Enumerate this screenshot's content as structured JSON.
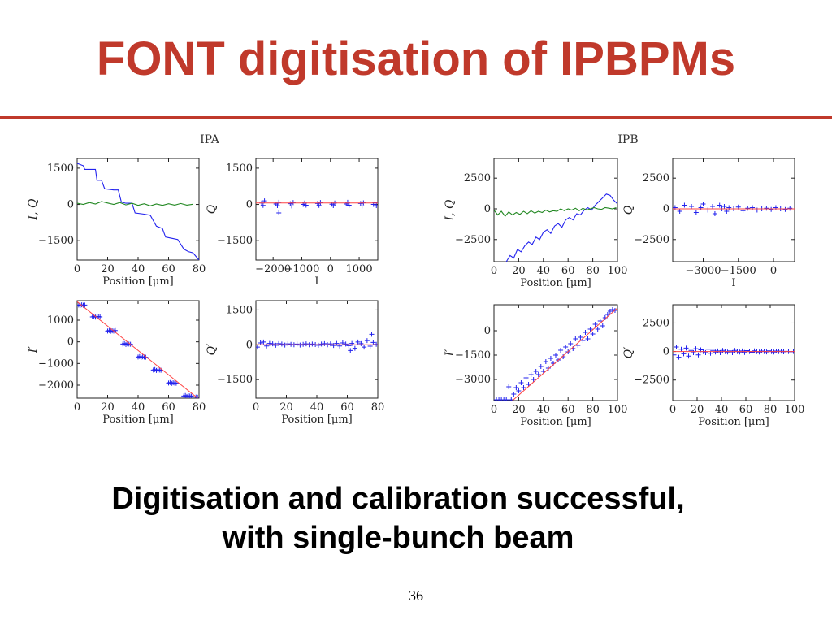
{
  "slide": {
    "title": "FONT digitisation of IPBPMs",
    "caption_line1": "Digitisation and calibration successful,",
    "caption_line2": "with single-bunch beam",
    "page_number": "36"
  },
  "colors": {
    "title": "#c0392b",
    "blue": "#2222ee",
    "green": "#228822",
    "red": "#ff4444"
  },
  "chart_data": [
    {
      "id": "ipa-iq",
      "group": "IPA",
      "type": "line",
      "xlabel": "Position [μm]",
      "ylabel": "I, Q",
      "xlim": [
        0,
        80
      ],
      "ylim": [
        -2300,
        1900
      ],
      "xticks": [
        0,
        20,
        40,
        60,
        80
      ],
      "yticks": [
        1500,
        0,
        -1500
      ],
      "series": [
        {
          "color": "blue",
          "kind": "line",
          "x": [
            0,
            4,
            5,
            12,
            13,
            16,
            18,
            24,
            27,
            29,
            32,
            36,
            38,
            44,
            48,
            52,
            56,
            58,
            62,
            66,
            70,
            73,
            76,
            80
          ],
          "y": [
            1700,
            1600,
            1450,
            1450,
            1000,
            1000,
            650,
            600,
            600,
            100,
            50,
            50,
            -350,
            -400,
            -450,
            -900,
            -1000,
            -1350,
            -1400,
            -1450,
            -1850,
            -1950,
            -2000,
            -2300
          ]
        },
        {
          "color": "green",
          "kind": "line",
          "x": [
            0,
            4,
            8,
            12,
            16,
            20,
            24,
            28,
            32,
            36,
            40,
            44,
            48,
            52,
            56,
            60,
            64,
            68,
            72,
            76
          ],
          "y": [
            50,
            0,
            80,
            20,
            120,
            60,
            0,
            80,
            -20,
            50,
            -40,
            30,
            -60,
            20,
            -40,
            30,
            -30,
            40,
            -30,
            10
          ]
        }
      ]
    },
    {
      "id": "ipa-q-vs-i",
      "group": "IPA",
      "type": "scatter",
      "xlabel": "I",
      "ylabel": "Q",
      "xlim": [
        -2600,
        1650
      ],
      "ylim": [
        -2300,
        1900
      ],
      "xticks": [
        -2000,
        -1000,
        0,
        1000
      ],
      "xticklabels": [
        "−2000",
        "−1000",
        "0",
        "1000"
      ],
      "yticks": [
        1500,
        0,
        -1500
      ],
      "series": [
        {
          "color": "blue",
          "kind": "points",
          "x": [
            -2400,
            -2350,
            -2300,
            -1900,
            -1850,
            -1800,
            -1400,
            -1350,
            -1300,
            -950,
            -900,
            -850,
            -450,
            -400,
            -350,
            50,
            100,
            150,
            550,
            600,
            650,
            1050,
            1100,
            1150,
            1500,
            1550,
            1600,
            -1800
          ],
          "y": [
            60,
            -40,
            150,
            20,
            -50,
            90,
            30,
            -60,
            80,
            0,
            60,
            -30,
            40,
            -40,
            80,
            10,
            -50,
            60,
            20,
            90,
            -30,
            40,
            -60,
            70,
            0,
            80,
            -50,
            -350
          ]
        },
        {
          "color": "red",
          "kind": "line",
          "x": [
            -2600,
            1650
          ],
          "y": [
            60,
            60
          ]
        }
      ]
    },
    {
      "id": "ipa-i-prime",
      "group": "IPA",
      "type": "scatter",
      "xlabel": "Position [μm]",
      "ylabel": "I′",
      "xlim": [
        0,
        80
      ],
      "ylim": [
        -2600,
        1900
      ],
      "xticks": [
        0,
        20,
        40,
        60,
        80
      ],
      "yticks": [
        1000,
        0,
        -1000,
        -2000
      ],
      "series": [
        {
          "color": "blue",
          "kind": "points",
          "x": [
            1,
            2,
            3,
            4,
            5,
            10,
            11,
            12,
            13,
            14,
            15,
            20,
            21,
            22,
            23,
            24,
            25,
            30,
            31,
            32,
            33,
            34,
            35,
            40,
            41,
            42,
            43,
            44,
            45,
            50,
            51,
            52,
            53,
            54,
            55,
            60,
            61,
            62,
            63,
            64,
            65,
            70,
            71,
            72,
            73,
            74,
            75,
            78,
            79
          ],
          "y": [
            1700,
            1680,
            1710,
            1690,
            1700,
            1150,
            1180,
            1140,
            1160,
            1170,
            1150,
            500,
            520,
            490,
            510,
            500,
            520,
            -100,
            -80,
            -120,
            -90,
            -100,
            -110,
            -700,
            -680,
            -720,
            -690,
            -700,
            -710,
            -1300,
            -1280,
            -1320,
            -1290,
            -1300,
            -1310,
            -1900,
            -1880,
            -1920,
            -1890,
            -1900,
            -1910,
            -2500,
            -2480,
            -2520,
            -2490,
            -2500,
            -2510,
            -2550,
            -2560
          ]
        },
        {
          "color": "red",
          "kind": "line",
          "x": [
            0,
            80
          ],
          "y": [
            1850,
            -2650
          ]
        }
      ]
    },
    {
      "id": "ipa-q-prime",
      "group": "IPA",
      "type": "scatter",
      "xlabel": "Position [μm]",
      "ylabel": "Q′",
      "xlim": [
        0,
        80
      ],
      "ylim": [
        -2300,
        1900
      ],
      "xticks": [
        0,
        20,
        40,
        60,
        80
      ],
      "yticks": [
        1500,
        0,
        -1500
      ],
      "series": [
        {
          "color": "blue",
          "kind": "points",
          "x": [
            1,
            3,
            5,
            7,
            9,
            11,
            13,
            15,
            17,
            19,
            21,
            23,
            25,
            27,
            29,
            31,
            33,
            35,
            37,
            39,
            41,
            43,
            45,
            47,
            49,
            51,
            53,
            55,
            57,
            59,
            61,
            63,
            65,
            67,
            69,
            71,
            73,
            75,
            77,
            79,
            76,
            62
          ],
          "y": [
            -100,
            80,
            120,
            -50,
            60,
            40,
            -20,
            50,
            30,
            -10,
            40,
            20,
            0,
            30,
            -10,
            20,
            40,
            0,
            30,
            10,
            -20,
            30,
            50,
            0,
            40,
            -30,
            60,
            -50,
            80,
            30,
            -40,
            60,
            -150,
            120,
            50,
            -100,
            180,
            -60,
            100,
            20,
            450,
            -250
          ]
        },
        {
          "color": "red",
          "kind": "line",
          "x": [
            0,
            80
          ],
          "y": [
            0,
            0
          ]
        }
      ]
    },
    {
      "id": "ipb-iq",
      "group": "IPB",
      "type": "line",
      "xlabel": "Position [μm]",
      "ylabel": "I, Q",
      "xlim": [
        0,
        100
      ],
      "ylim": [
        -4300,
        4100
      ],
      "xticks": [
        0,
        20,
        40,
        60,
        80,
        100
      ],
      "yticks": [
        2500,
        0,
        -2500
      ],
      "series": [
        {
          "color": "blue",
          "kind": "line",
          "x": [
            10,
            13,
            16,
            19,
            22,
            25,
            28,
            31,
            34,
            37,
            40,
            43,
            46,
            49,
            52,
            55,
            58,
            61,
            64,
            67,
            70,
            73,
            76,
            79,
            82,
            85,
            88,
            91,
            94,
            97,
            100
          ],
          "y": [
            -4300,
            -3800,
            -4000,
            -3300,
            -3500,
            -3000,
            -2700,
            -2900,
            -2300,
            -2500,
            -1900,
            -1700,
            -2000,
            -1400,
            -1200,
            -1500,
            -900,
            -700,
            -900,
            -400,
            -500,
            -100,
            100,
            -100,
            300,
            600,
            900,
            1200,
            1100,
            700,
            400
          ]
        },
        {
          "color": "green",
          "kind": "line",
          "x": [
            0,
            3,
            6,
            9,
            12,
            15,
            18,
            21,
            24,
            27,
            30,
            33,
            36,
            39,
            42,
            45,
            48,
            51,
            54,
            57,
            60,
            63,
            66,
            69,
            72,
            75,
            78,
            81,
            84,
            87,
            90,
            93,
            96,
            99
          ],
          "y": [
            -100,
            -500,
            -200,
            -600,
            -250,
            -500,
            -300,
            -450,
            -200,
            -400,
            -150,
            -350,
            -200,
            -300,
            -100,
            -250,
            -150,
            -200,
            0,
            -150,
            0,
            -100,
            50,
            -150,
            50,
            -100,
            0,
            100,
            0,
            -50,
            100,
            50,
            0,
            100
          ]
        }
      ]
    },
    {
      "id": "ipb-q-vs-i",
      "group": "IPB",
      "type": "scatter",
      "xlabel": "I",
      "ylabel": "Q",
      "xlim": [
        -4300,
        900
      ],
      "ylim": [
        -4300,
        4100
      ],
      "xticks": [
        -3000,
        -1500,
        0
      ],
      "xticklabels": [
        "−3000",
        "−1500",
        "0"
      ],
      "yticks": [
        2500,
        0,
        -2500
      ],
      "series": [
        {
          "color": "blue",
          "kind": "points",
          "x": [
            -4200,
            -4000,
            -3800,
            -3500,
            -3300,
            -3100,
            -3000,
            -2800,
            -2600,
            -2500,
            -2300,
            -2200,
            -2100,
            -2000,
            -1900,
            -1700,
            -1500,
            -1300,
            -1100,
            -900,
            -700,
            -500,
            -300,
            -100,
            100,
            300,
            500,
            700
          ],
          "y": [
            100,
            -200,
            300,
            200,
            -300,
            100,
            400,
            -100,
            200,
            -400,
            300,
            0,
            200,
            -200,
            100,
            0,
            150,
            -150,
            50,
            100,
            -100,
            0,
            50,
            -50,
            100,
            0,
            -50,
            50
          ]
        },
        {
          "color": "red",
          "kind": "line",
          "x": [
            -4300,
            900
          ],
          "y": [
            0,
            0
          ]
        }
      ]
    },
    {
      "id": "ipb-i-prime",
      "group": "IPB",
      "type": "scatter",
      "xlabel": "Position [μm]",
      "ylabel": "I′",
      "xlim": [
        0,
        100
      ],
      "ylim": [
        -4300,
        1600
      ],
      "xticks": [
        0,
        20,
        40,
        60,
        80,
        100
      ],
      "yticks": [
        0,
        -1500,
        -3000
      ],
      "series": [
        {
          "color": "blue",
          "kind": "points",
          "x": [
            2,
            4,
            6,
            8,
            10,
            12,
            14,
            16,
            18,
            20,
            22,
            24,
            26,
            28,
            30,
            32,
            34,
            36,
            38,
            40,
            42,
            44,
            46,
            48,
            50,
            52,
            54,
            56,
            58,
            60,
            62,
            64,
            66,
            68,
            70,
            72,
            74,
            76,
            78,
            80,
            82,
            84,
            86,
            88,
            90,
            92,
            94,
            96,
            98
          ],
          "y": [
            -4250,
            -4250,
            -4250,
            -4250,
            -4250,
            -3450,
            -4250,
            -3900,
            -3500,
            -3700,
            -3200,
            -3500,
            -2900,
            -3300,
            -2700,
            -3000,
            -2500,
            -2700,
            -2200,
            -2500,
            -1900,
            -2300,
            -1700,
            -2000,
            -1500,
            -1800,
            -1200,
            -1600,
            -1000,
            -1300,
            -800,
            -1100,
            -500,
            -900,
            -400,
            -600,
            -100,
            -500,
            100,
            -200,
            400,
            100,
            600,
            300,
            800,
            1000,
            1200,
            1300,
            1250
          ]
        },
        {
          "color": "red",
          "kind": "line",
          "x": [
            15,
            100
          ],
          "y": [
            -4300,
            1400
          ]
        }
      ]
    },
    {
      "id": "ipb-q-prime",
      "group": "IPB",
      "type": "scatter",
      "xlabel": "Position [μm]",
      "ylabel": "Q′",
      "xlim": [
        0,
        100
      ],
      "ylim": [
        -4300,
        4100
      ],
      "xticks": [
        0,
        20,
        40,
        60,
        80,
        100
      ],
      "yticks": [
        2500,
        0,
        -2500
      ],
      "series": [
        {
          "color": "blue",
          "kind": "points",
          "x": [
            1,
            3,
            5,
            7,
            9,
            11,
            13,
            15,
            17,
            19,
            21,
            23,
            25,
            27,
            29,
            31,
            33,
            35,
            37,
            39,
            41,
            43,
            45,
            47,
            49,
            51,
            53,
            55,
            57,
            59,
            61,
            63,
            65,
            67,
            69,
            71,
            73,
            75,
            77,
            79,
            81,
            83,
            85,
            87,
            89,
            91,
            93,
            95,
            97,
            99
          ],
          "y": [
            -300,
            400,
            -500,
            200,
            -200,
            300,
            -400,
            100,
            -100,
            250,
            -300,
            150,
            0,
            -100,
            200,
            -150,
            100,
            -50,
            50,
            -100,
            100,
            0,
            -50,
            50,
            -100,
            100,
            0,
            -50,
            50,
            -80,
            80,
            0,
            -60,
            60,
            0,
            -50,
            40,
            0,
            -40,
            60,
            0,
            -50,
            40,
            0,
            30,
            -30,
            20,
            0,
            -20,
            10
          ]
        },
        {
          "color": "red",
          "kind": "line",
          "x": [
            0,
            100
          ],
          "y": [
            0,
            0
          ]
        }
      ]
    }
  ]
}
